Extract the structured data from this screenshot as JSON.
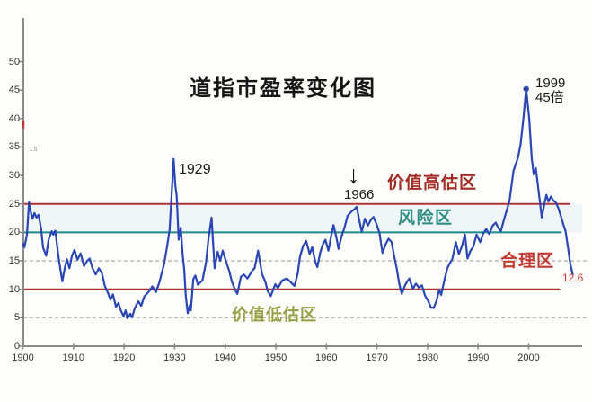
{
  "chart_data": {
    "type": "line",
    "title": "道指市盈率变化图",
    "xlabel": "",
    "ylabel": "",
    "x_ticks": [
      1900,
      1910,
      1920,
      1930,
      1940,
      1950,
      1960,
      1970,
      1980,
      1990,
      2000
    ],
    "y_ticks": [
      0,
      5,
      10,
      15,
      20,
      25,
      30,
      35,
      40,
      45,
      50
    ],
    "x_range": [
      1900,
      2010.5
    ],
    "y_range": [
      0,
      57.5
    ],
    "grid": "dashed lines at 5 and 15 only",
    "legend_position": "none",
    "dashed_gridlines": [
      5,
      15
    ],
    "reference_lines": [
      {
        "value": 25,
        "color": "#b23535",
        "end_year": 2008.2,
        "zone_above_label": "价值高估区"
      },
      {
        "value": 20,
        "color": "#1e8c8c",
        "end_year": 2006.5,
        "zone_above_label": "风险区"
      },
      {
        "value": 10,
        "color": "#b23535",
        "end_year": 2006.2,
        "zone_above_label": "合理区",
        "zone_below_label": "价值低估区"
      }
    ],
    "risk_band": {
      "from": 20,
      "to": 25
    },
    "axis_red_tick_value": 40,
    "peak_marker": [
      1999.5,
      45.2
    ],
    "series": [
      {
        "name": "道指市盈率",
        "color": "#2a46b4",
        "points": [
          [
            1900.0,
            18.0
          ],
          [
            1900.3,
            17.4
          ],
          [
            1900.8,
            19.6
          ],
          [
            1901.2,
            25.3
          ],
          [
            1901.5,
            23.8
          ],
          [
            1901.9,
            22.4
          ],
          [
            1902.3,
            23.4
          ],
          [
            1902.7,
            22.6
          ],
          [
            1903.1,
            23.1
          ],
          [
            1903.6,
            20.6
          ],
          [
            1904.0,
            17.3
          ],
          [
            1904.6,
            15.9
          ],
          [
            1905.1,
            18.8
          ],
          [
            1905.7,
            20.2
          ],
          [
            1906.0,
            19.6
          ],
          [
            1906.4,
            20.3
          ],
          [
            1907.0,
            16.0
          ],
          [
            1907.4,
            13.5
          ],
          [
            1907.8,
            11.4
          ],
          [
            1908.3,
            13.8
          ],
          [
            1908.7,
            15.3
          ],
          [
            1909.2,
            13.7
          ],
          [
            1909.7,
            15.9
          ],
          [
            1910.2,
            16.9
          ],
          [
            1910.8,
            15.2
          ],
          [
            1911.4,
            16.3
          ],
          [
            1912.1,
            14.1
          ],
          [
            1912.7,
            15.0
          ],
          [
            1913.2,
            15.4
          ],
          [
            1913.8,
            13.6
          ],
          [
            1914.4,
            12.6
          ],
          [
            1915.0,
            13.7
          ],
          [
            1915.6,
            12.9
          ],
          [
            1916.2,
            10.6
          ],
          [
            1916.8,
            9.4
          ],
          [
            1917.3,
            8.2
          ],
          [
            1917.8,
            9.1
          ],
          [
            1918.4,
            6.9
          ],
          [
            1918.9,
            7.6
          ],
          [
            1919.4,
            6.2
          ],
          [
            1919.9,
            5.3
          ],
          [
            1920.3,
            6.3
          ],
          [
            1920.7,
            4.9
          ],
          [
            1921.2,
            5.7
          ],
          [
            1921.6,
            5.1
          ],
          [
            1922.1,
            6.6
          ],
          [
            1922.8,
            7.9
          ],
          [
            1923.4,
            7.1
          ],
          [
            1924.0,
            8.7
          ],
          [
            1924.9,
            9.6
          ],
          [
            1925.6,
            10.5
          ],
          [
            1926.3,
            9.5
          ],
          [
            1927.0,
            11.3
          ],
          [
            1927.9,
            14.4
          ],
          [
            1928.5,
            17.5
          ],
          [
            1929.0,
            20.5
          ],
          [
            1929.4,
            26.5
          ],
          [
            1929.8,
            32.9
          ],
          [
            1930.1,
            28.5
          ],
          [
            1930.4,
            26.4
          ],
          [
            1930.8,
            18.7
          ],
          [
            1931.2,
            20.8
          ],
          [
            1931.6,
            16.0
          ],
          [
            1931.9,
            13.4
          ],
          [
            1932.2,
            8.8
          ],
          [
            1932.6,
            5.8
          ],
          [
            1933.0,
            7.2
          ],
          [
            1933.2,
            6.3
          ],
          [
            1933.7,
            11.8
          ],
          [
            1934.1,
            12.4
          ],
          [
            1934.6,
            10.8
          ],
          [
            1935.5,
            11.6
          ],
          [
            1936.2,
            14.7
          ],
          [
            1936.7,
            18.9
          ],
          [
            1937.3,
            22.6
          ],
          [
            1937.9,
            13.7
          ],
          [
            1938.5,
            16.6
          ],
          [
            1939.0,
            15.0
          ],
          [
            1939.5,
            16.8
          ],
          [
            1940.2,
            14.8
          ],
          [
            1940.8,
            13.2
          ],
          [
            1941.3,
            11.4
          ],
          [
            1942.0,
            9.8
          ],
          [
            1942.4,
            9.2
          ],
          [
            1943.1,
            12.2
          ],
          [
            1943.7,
            12.6
          ],
          [
            1944.4,
            11.9
          ],
          [
            1945.3,
            13.2
          ],
          [
            1945.8,
            13.7
          ],
          [
            1946.5,
            16.8
          ],
          [
            1947.3,
            12.6
          ],
          [
            1947.9,
            11.4
          ],
          [
            1948.4,
            9.7
          ],
          [
            1949.0,
            8.8
          ],
          [
            1949.9,
            10.9
          ],
          [
            1950.4,
            10.2
          ],
          [
            1951.3,
            11.6
          ],
          [
            1952.2,
            11.9
          ],
          [
            1953.1,
            11.1
          ],
          [
            1953.7,
            10.6
          ],
          [
            1954.3,
            12.6
          ],
          [
            1954.8,
            15.8
          ],
          [
            1955.4,
            17.6
          ],
          [
            1956.0,
            18.5
          ],
          [
            1956.7,
            16.2
          ],
          [
            1957.2,
            17.4
          ],
          [
            1957.8,
            14.9
          ],
          [
            1958.2,
            13.9
          ],
          [
            1958.8,
            16.5
          ],
          [
            1959.3,
            17.9
          ],
          [
            1959.8,
            18.7
          ],
          [
            1960.4,
            16.8
          ],
          [
            1961.0,
            19.6
          ],
          [
            1961.4,
            21.3
          ],
          [
            1962.0,
            19.0
          ],
          [
            1962.4,
            17.1
          ],
          [
            1963.0,
            19.3
          ],
          [
            1963.6,
            20.9
          ],
          [
            1964.2,
            22.9
          ],
          [
            1965.0,
            23.7
          ],
          [
            1965.6,
            24.1
          ],
          [
            1966.0,
            24.5
          ],
          [
            1966.5,
            22.1
          ],
          [
            1967.0,
            20.1
          ],
          [
            1967.6,
            22.4
          ],
          [
            1968.2,
            21.2
          ],
          [
            1968.8,
            22.2
          ],
          [
            1969.3,
            22.7
          ],
          [
            1969.9,
            21.5
          ],
          [
            1970.5,
            19.9
          ],
          [
            1971.1,
            16.4
          ],
          [
            1971.7,
            17.9
          ],
          [
            1972.3,
            18.9
          ],
          [
            1972.9,
            18.3
          ],
          [
            1973.4,
            15.9
          ],
          [
            1973.9,
            13.7
          ],
          [
            1974.4,
            11.0
          ],
          [
            1974.9,
            9.2
          ],
          [
            1975.5,
            10.6
          ],
          [
            1976.0,
            11.4
          ],
          [
            1976.4,
            11.9
          ],
          [
            1977.1,
            10.1
          ],
          [
            1977.7,
            11.0
          ],
          [
            1978.3,
            10.3
          ],
          [
            1978.9,
            10.7
          ],
          [
            1979.5,
            8.9
          ],
          [
            1980.1,
            8.0
          ],
          [
            1980.7,
            6.8
          ],
          [
            1981.2,
            6.7
          ],
          [
            1981.8,
            8.0
          ],
          [
            1982.3,
            9.9
          ],
          [
            1982.7,
            9.0
          ],
          [
            1983.3,
            11.5
          ],
          [
            1983.9,
            13.7
          ],
          [
            1984.4,
            14.6
          ],
          [
            1984.9,
            15.3
          ],
          [
            1985.6,
            18.3
          ],
          [
            1986.2,
            16.2
          ],
          [
            1986.8,
            17.6
          ],
          [
            1987.4,
            19.6
          ],
          [
            1987.9,
            15.4
          ],
          [
            1988.5,
            16.8
          ],
          [
            1989.0,
            17.4
          ],
          [
            1989.7,
            19.6
          ],
          [
            1990.4,
            18.3
          ],
          [
            1991.0,
            19.8
          ],
          [
            1991.6,
            20.6
          ],
          [
            1992.2,
            19.7
          ],
          [
            1992.9,
            21.2
          ],
          [
            1993.5,
            21.7
          ],
          [
            1994.0,
            20.8
          ],
          [
            1994.5,
            20.2
          ],
          [
            1995.2,
            22.5
          ],
          [
            1996.2,
            25.5
          ],
          [
            1997.0,
            30.8
          ],
          [
            1997.9,
            33.2
          ],
          [
            1998.4,
            35.5
          ],
          [
            1998.9,
            39.5
          ],
          [
            1999.5,
            45.2
          ],
          [
            2000.1,
            40.0
          ],
          [
            2000.6,
            33.0
          ],
          [
            2001.0,
            30.2
          ],
          [
            2001.4,
            31.3
          ],
          [
            2001.8,
            28.5
          ],
          [
            2002.2,
            25.5
          ],
          [
            2002.6,
            22.6
          ],
          [
            2003.1,
            25.0
          ],
          [
            2003.5,
            26.6
          ],
          [
            2003.9,
            25.4
          ],
          [
            2004.4,
            26.3
          ],
          [
            2004.9,
            25.6
          ],
          [
            2005.4,
            25.2
          ],
          [
            2005.9,
            24.2
          ],
          [
            2006.4,
            22.8
          ],
          [
            2006.9,
            21.3
          ],
          [
            2007.3,
            20.2
          ],
          [
            2007.8,
            17.2
          ],
          [
            2008.2,
            14.6
          ],
          [
            2008.7,
            12.6
          ]
        ]
      }
    ]
  },
  "annotations": {
    "peak_1929": "1929",
    "arrow_1966": "↓",
    "label_1966": "1966",
    "label_1999": "1999",
    "label_45x": "45倍",
    "zone_overvalued": "价值高估区",
    "zone_risk": "风险区",
    "zone_fair": "合理区",
    "zone_undervalued": "价值低估区",
    "end_value": "12.6",
    "axis_artifact": "1.5"
  },
  "colors": {
    "line": "#2a46b4",
    "ref_red": "#b23535",
    "ref_teal": "#1e8c8c",
    "grid_dash": "#b9b2b2",
    "axis": "#8a8a8a",
    "tick_text": "#333333",
    "annotation_text": "#1a1a1a",
    "zone_overvalued_text": "#a12a22",
    "zone_risk_text": "#2f8d85",
    "zone_fair_text": "#c23a30",
    "zone_undervalued_text": "#97a045",
    "end_value_text": "#c23a30",
    "risk_band_fill": "#e3f0f6"
  }
}
